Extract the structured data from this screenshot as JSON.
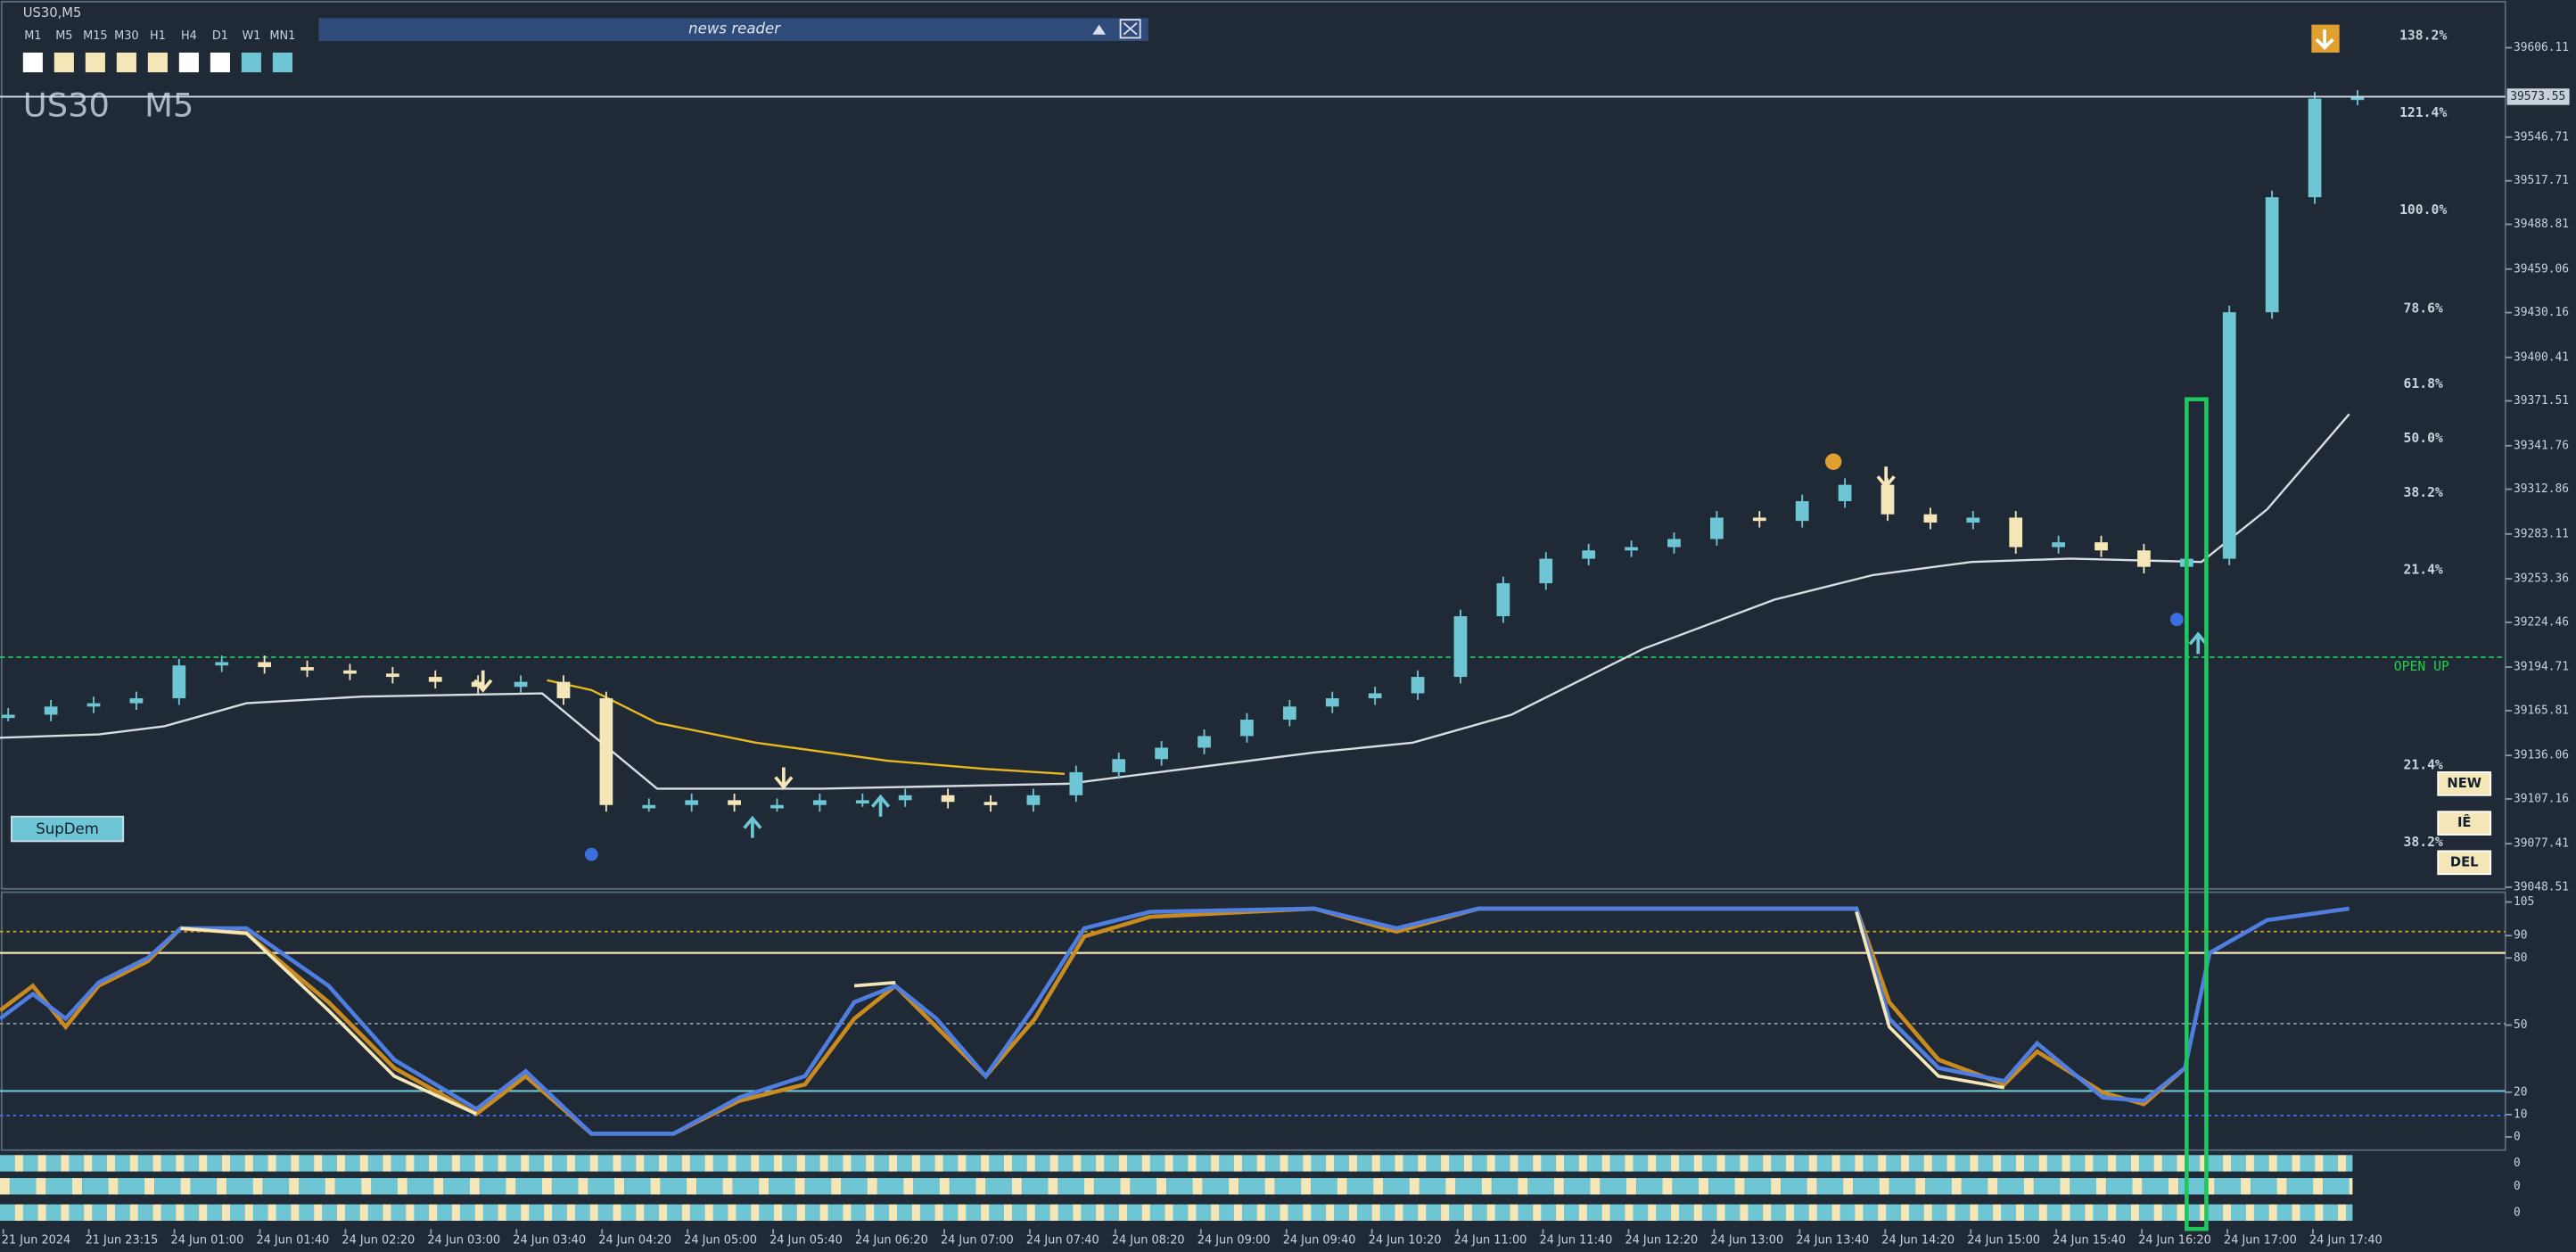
{
  "window_title": "US30,M5",
  "timeframes": [
    "M1",
    "M5",
    "M15",
    "M30",
    "H1",
    "H4",
    "D1",
    "W1",
    "MN1"
  ],
  "news_reader": "news reader",
  "symbol": "US30",
  "period": "M5",
  "price_axis": {
    "ylim": [
      39047.4,
      39635.6
    ],
    "ticks": [
      39606.11,
      39546.71,
      39517.71,
      39488.81,
      39459.06,
      39430.16,
      39400.41,
      39371.51,
      39341.76,
      39312.86,
      39283.11,
      39253.36,
      39224.46,
      39194.71,
      39165.81,
      39136.06,
      39107.16,
      39077.41,
      39048.51
    ],
    "current": 39573.55
  },
  "price": {
    "values": [
      39163.1,
      39168.5,
      39170.7,
      39174.0,
      39195.8,
      39198.0,
      39194.7,
      39192.5,
      39190.4,
      39188.2,
      39184.9,
      39181.6,
      39184.9,
      39174.0,
      39103.1,
      39103.1,
      39106.3,
      39103.1,
      39103.1,
      39106.3,
      39106.3,
      39109.6,
      39105.2,
      39103.1,
      39109.6,
      39124.9,
      39133.6,
      39141.2,
      39148.9,
      39159.8,
      39168.5,
      39174.0,
      39177.3,
      39188.2,
      39228.5,
      39250.4,
      39266.7,
      39272.2,
      39274.4,
      39279.8,
      39294.0,
      39291.8,
      39304.9,
      39315.8,
      39296.2,
      39290.7,
      39294.0,
      39274.4,
      39277.6,
      39272.2,
      39261.3,
      39266.7,
      39430.4,
      39506.8,
      39572.3,
      39573.55
    ]
  },
  "fib_labels": [
    "138.2%",
    "121.4%",
    "100.0%",
    "78.6%",
    "61.8%",
    "50.0%",
    "38.2%",
    "21.4%",
    "21.4%",
    "38.2%"
  ],
  "open_label": "OPEN UP",
  "buttons": [
    "NEW",
    "IÊ",
    "DEL"
  ],
  "supdem": "SupDem",
  "time_labels": [
    "21 Jun 2024",
    "21 Jun 23:15",
    "24 Jun 01:00",
    "24 Jun 01:40",
    "24 Jun 02:20",
    "24 Jun 03:00",
    "24 Jun 03:40",
    "24 Jun 04:20",
    "24 Jun 05:00",
    "24 Jun 05:40",
    "24 Jun 06:20",
    "24 Jun 07:00",
    "24 Jun 07:40",
    "24 Jun 08:20",
    "24 Jun 09:00",
    "24 Jun 09:40",
    "24 Jun 10:20",
    "24 Jun 11:00",
    "24 Jun 11:40",
    "24 Jun 12:20",
    "24 Jun 13:00",
    "24 Jun 13:40",
    "24 Jun 14:20",
    "24 Jun 15:00",
    "24 Jun 15:40",
    "24 Jun 16:20",
    "24 Jun 17:00",
    "24 Jun 17:40"
  ],
  "oscillator": {
    "ylim": [
      0,
      105
    ],
    "ticks": [
      105,
      90,
      80,
      50,
      20,
      10,
      0
    ]
  },
  "bar_rows": [
    0,
    0,
    0
  ]
}
